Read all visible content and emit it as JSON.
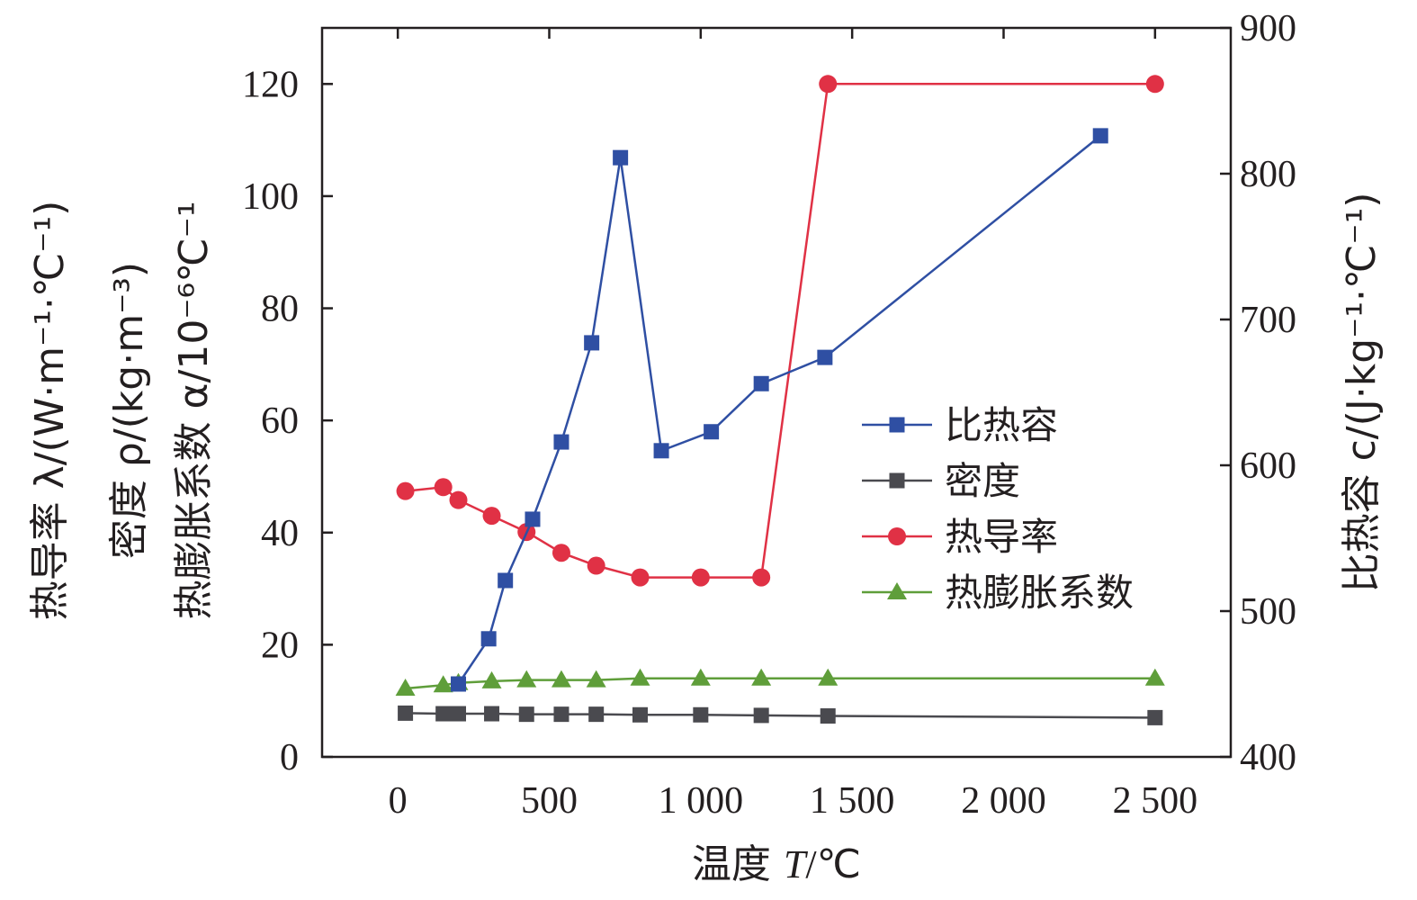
{
  "chart_data": {
    "type": "line",
    "x_axis": {
      "label_main": "温度 ",
      "label_var": "T",
      "label_unit": "/℃",
      "range": [
        -250,
        2750
      ],
      "ticks": [
        0,
        500,
        1000,
        1500,
        2000,
        2500
      ],
      "tick_labels": [
        "0",
        "500",
        "1 000",
        "1 500",
        "2 000",
        "2 500"
      ]
    },
    "y_left": {
      "range": [
        0,
        130
      ],
      "ticks": [
        0,
        20,
        40,
        60,
        80,
        100,
        120
      ],
      "tick_labels": [
        "0",
        "20",
        "40",
        "60",
        "80",
        "100",
        "120"
      ],
      "label_lines": [
        "热导率 λ/(W·m⁻¹·℃⁻¹)",
        "密度 ρ/(kg·m⁻³)",
        "热膨胀系数 α/10⁻⁶℃⁻¹"
      ]
    },
    "y_right": {
      "range": [
        400,
        900
      ],
      "ticks": [
        400,
        500,
        600,
        700,
        800,
        900
      ],
      "tick_labels": [
        "400",
        "500",
        "600",
        "700",
        "800",
        "900"
      ],
      "label": "比热容 c/(J·kg⁻¹·℃⁻¹)"
    },
    "legend_position": "center-right",
    "grid": false,
    "series": [
      {
        "name": "比热容",
        "axis": "right",
        "color": "#2f4fa3",
        "marker": "square",
        "x": [
          200,
          300,
          355,
          445,
          540,
          640,
          735,
          870,
          1035,
          1200,
          1410,
          2320
        ],
        "y": [
          450,
          481,
          521,
          563,
          616,
          684,
          811,
          610,
          623,
          656,
          674,
          826
        ]
      },
      {
        "name": "密度",
        "axis": "left",
        "color": "#4a4a4f",
        "marker": "square",
        "x": [
          25,
          150,
          200,
          310,
          425,
          540,
          655,
          800,
          1000,
          1200,
          1420,
          2500
        ],
        "y": [
          7.8,
          7.7,
          7.7,
          7.7,
          7.6,
          7.6,
          7.6,
          7.5,
          7.5,
          7.4,
          7.3,
          7.0
        ]
      },
      {
        "name": "热导率",
        "axis": "left",
        "color": "#e03145",
        "marker": "circle",
        "x": [
          25,
          150,
          200,
          310,
          425,
          540,
          655,
          800,
          1000,
          1200,
          1420,
          2500
        ],
        "y": [
          47.4,
          48.1,
          45.8,
          43.0,
          40.1,
          36.4,
          34.1,
          32.0,
          32.0,
          32.0,
          120.0,
          120.0
        ]
      },
      {
        "name": "热膨胀系数",
        "axis": "left",
        "color": "#5f9e3a",
        "marker": "triangle",
        "x": [
          25,
          150,
          200,
          310,
          425,
          540,
          655,
          800,
          1000,
          1200,
          1420,
          2500
        ],
        "y": [
          12.2,
          12.8,
          13.2,
          13.5,
          13.7,
          13.7,
          13.7,
          14.0,
          14.0,
          14.0,
          14.0,
          14.0
        ]
      }
    ]
  }
}
